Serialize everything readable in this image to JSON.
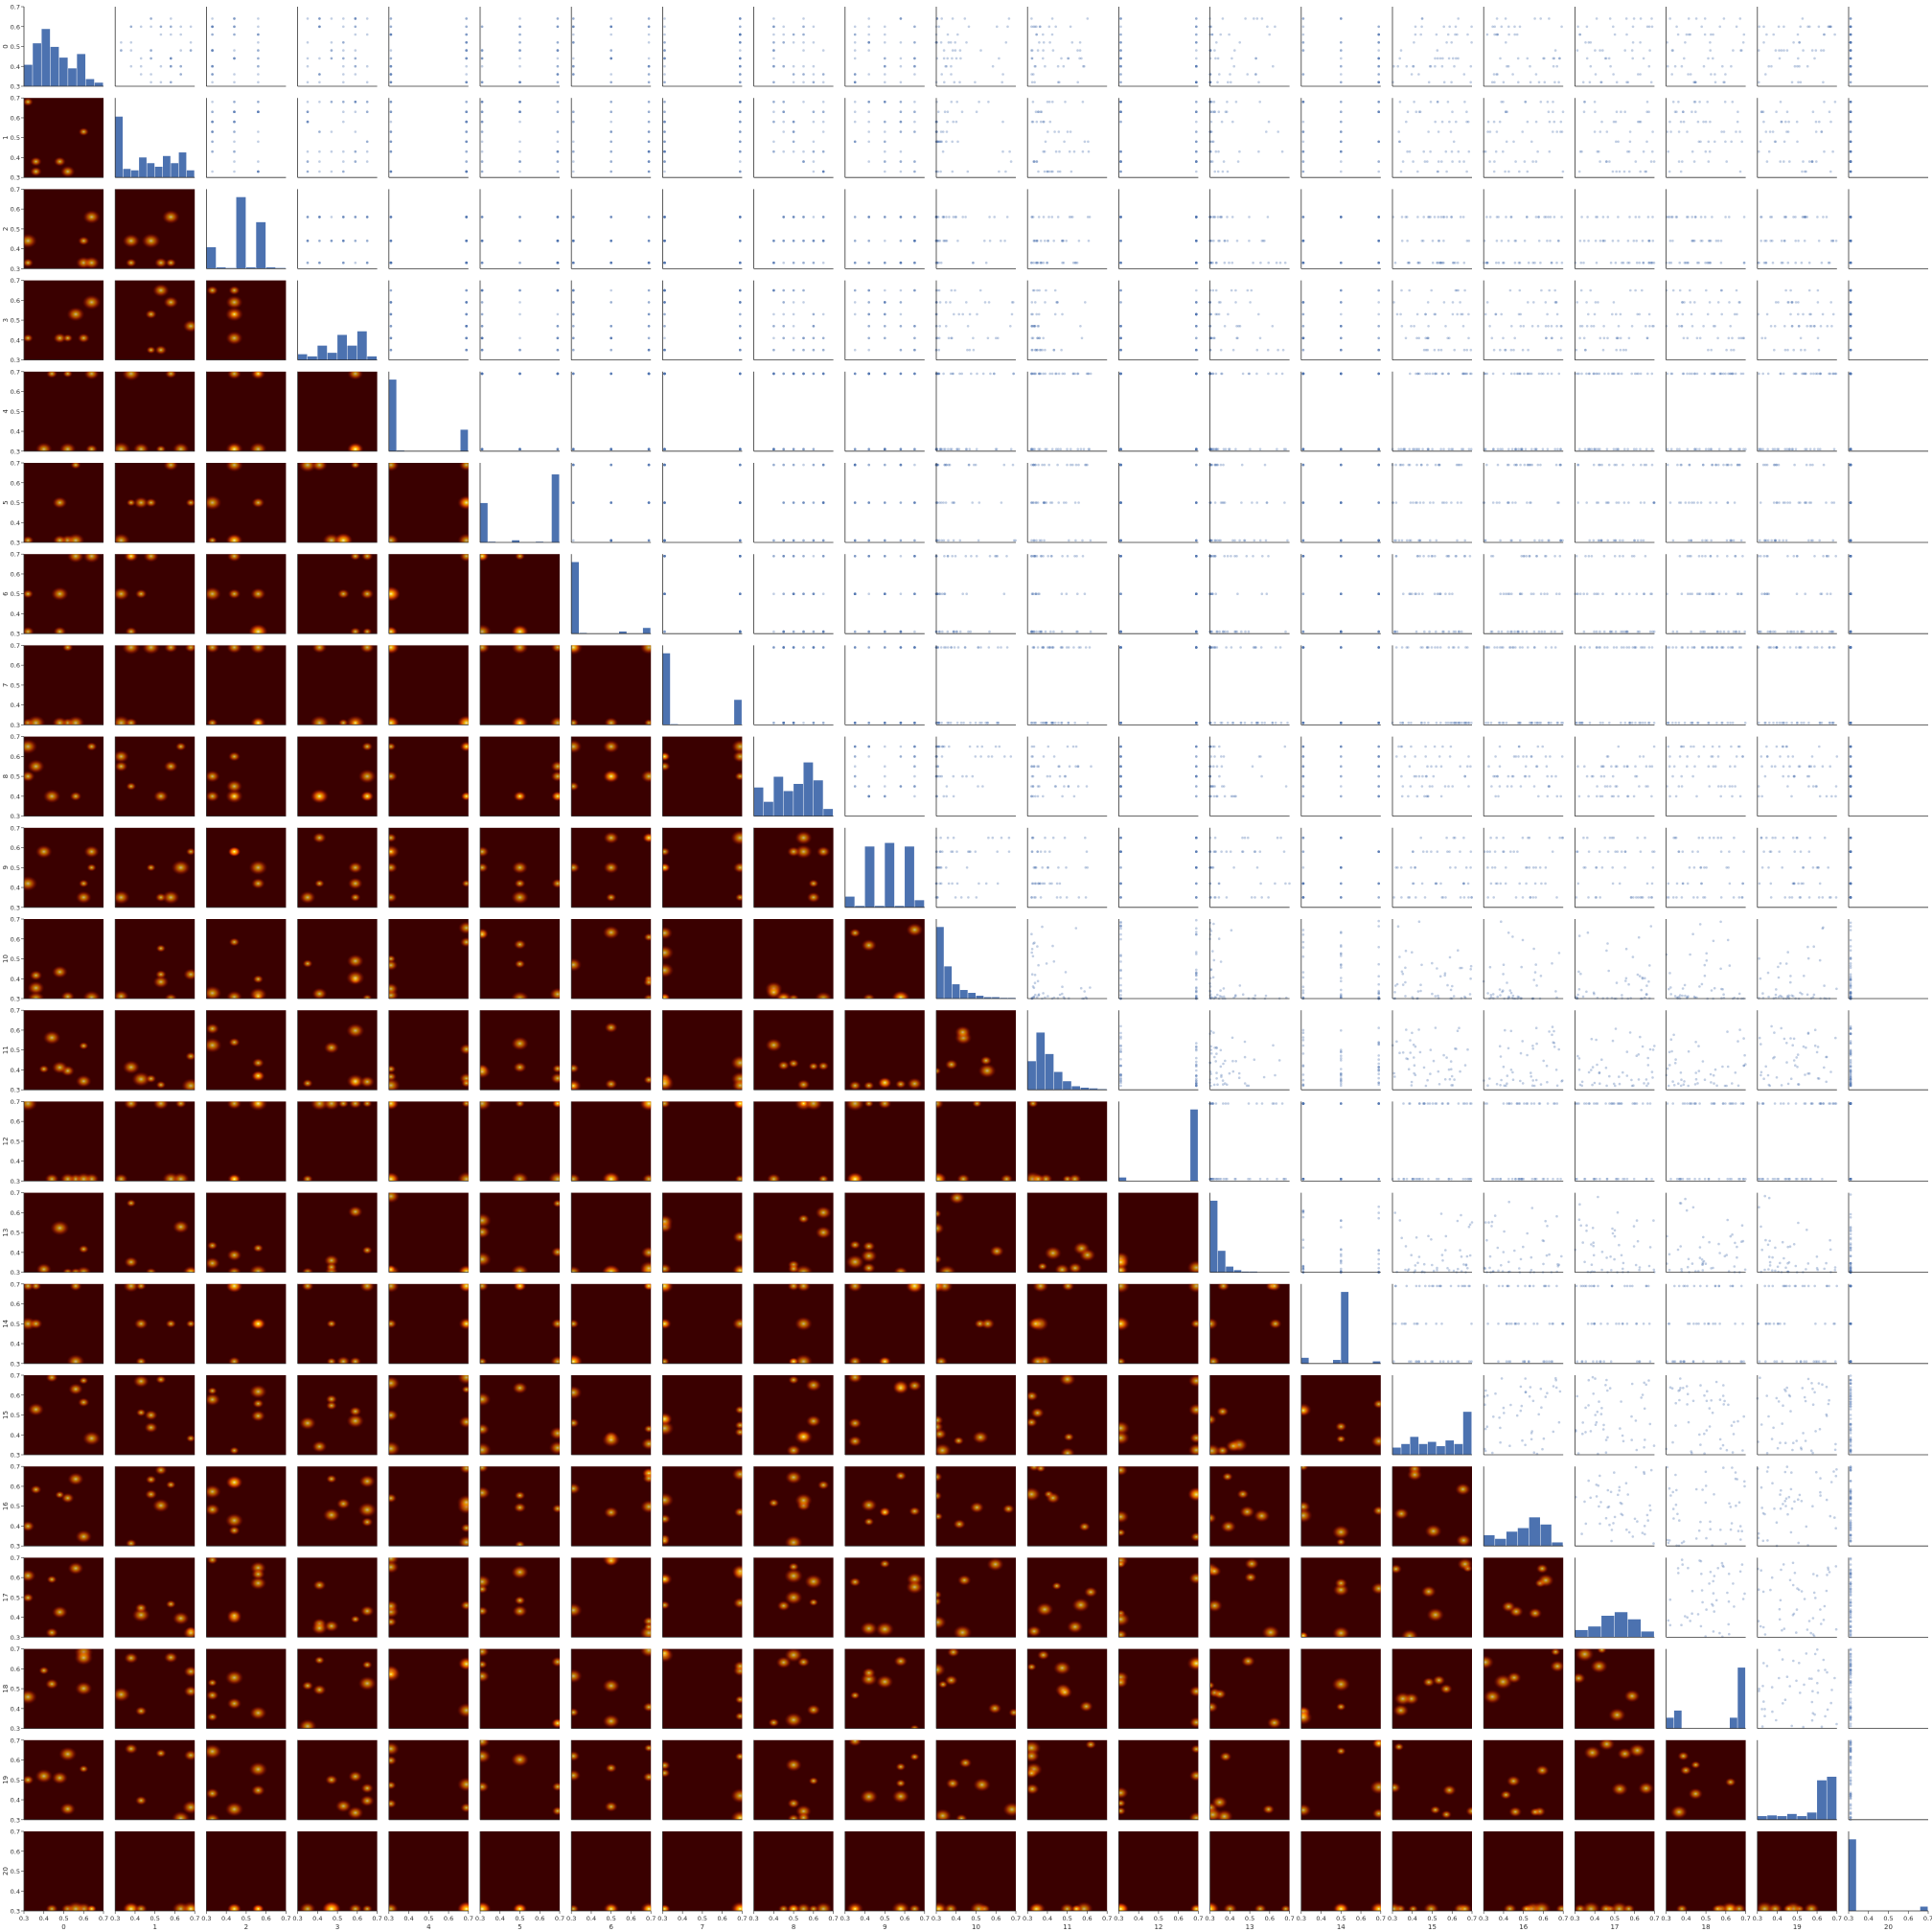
{
  "chart_data": {
    "type": "pair-grid",
    "variables": [
      "0",
      "1",
      "2",
      "3",
      "4",
      "5",
      "6",
      "7",
      "8",
      "9",
      "10",
      "11",
      "12",
      "13",
      "14",
      "15",
      "16",
      "17",
      "18",
      "19",
      "20"
    ],
    "axis_range": [
      0.3,
      0.7
    ],
    "tick_labels": [
      "0.3",
      "0.4",
      "0.5",
      "0.6",
      "0.7"
    ],
    "diagonal": "histogram",
    "upper_triangle": "scatter",
    "lower_triangle": "kde density heatmap",
    "hist_color": "#4c72b0",
    "scatter_color": "#4c72b0",
    "heatmap_colormap": [
      "#3a0000",
      "#7a0a00",
      "#c42a00",
      "#ff6a00",
      "#ffc000",
      "#fffad0"
    ],
    "histograms": {
      "0": [
        0.3,
        0.6,
        0.8,
        0.55,
        0.4,
        0.25,
        0.45,
        0.1,
        0.05
      ],
      "1": [
        0.85,
        0.12,
        0.1,
        0.28,
        0.2,
        0.15,
        0.3,
        0.2,
        0.35,
        0.1
      ],
      "2": [
        0.3,
        0.02,
        0.01,
        1.0,
        0.02,
        0.65,
        0.02,
        0.01
      ],
      "3": [
        0.08,
        0.05,
        0.2,
        0.1,
        0.35,
        0.2,
        0.4,
        0.05
      ],
      "4": [
        1.0,
        0.01,
        0.0,
        0.0,
        0.0,
        0.0,
        0.0,
        0.0,
        0.0,
        0.3
      ],
      "5": [
        0.55,
        0.01,
        0.0,
        0.0,
        0.03,
        0.0,
        0.0,
        0.01,
        0.0,
        0.95
      ],
      "6": [
        1.0,
        0.01,
        0.0,
        0.0,
        0.0,
        0.0,
        0.03,
        0.0,
        0.0,
        0.08
      ],
      "7": [
        1.0,
        0.01,
        0.0,
        0.0,
        0.0,
        0.0,
        0.0,
        0.0,
        0.0,
        0.35
      ],
      "8": [
        0.4,
        0.2,
        0.55,
        0.35,
        0.45,
        0.75,
        0.5,
        0.1
      ],
      "9": [
        0.15,
        0.02,
        0.85,
        0.02,
        0.9,
        0.02,
        0.85,
        0.1
      ],
      "10": [
        1.0,
        0.45,
        0.2,
        0.12,
        0.08,
        0.04,
        0.02,
        0.02,
        0.01,
        0.01
      ],
      "11": [
        0.4,
        0.8,
        0.5,
        0.25,
        0.12,
        0.05,
        0.03,
        0.02,
        0.01
      ],
      "12": [
        0.05,
        0.0,
        0.0,
        0.0,
        0.0,
        0.0,
        0.0,
        0.0,
        0.0,
        1.0
      ],
      "13": [
        1.0,
        0.3,
        0.08,
        0.03,
        0.01,
        0.01,
        0.0,
        0.0,
        0.0,
        0.0
      ],
      "14": [
        0.08,
        0.0,
        0.0,
        0.0,
        0.05,
        1.0,
        0.0,
        0.0,
        0.0,
        0.03
      ],
      "15": [
        0.1,
        0.15,
        0.25,
        0.15,
        0.18,
        0.12,
        0.2,
        0.15,
        0.6
      ],
      "16": [
        0.15,
        0.1,
        0.2,
        0.25,
        0.4,
        0.3,
        0.05
      ],
      "17": [
        0.1,
        0.15,
        0.3,
        0.35,
        0.25,
        0.08
      ],
      "18": [
        0.15,
        0.25,
        0.0,
        0.0,
        0.0,
        0.0,
        0.0,
        0.0,
        0.15,
        0.85
      ],
      "19": [
        0.05,
        0.06,
        0.05,
        0.08,
        0.05,
        0.1,
        0.55,
        0.6
      ],
      "20": [
        1.0,
        0.0,
        0.0,
        0.0,
        0.0,
        0.0,
        0.0,
        0.0,
        0.0,
        0.06
      ]
    }
  }
}
